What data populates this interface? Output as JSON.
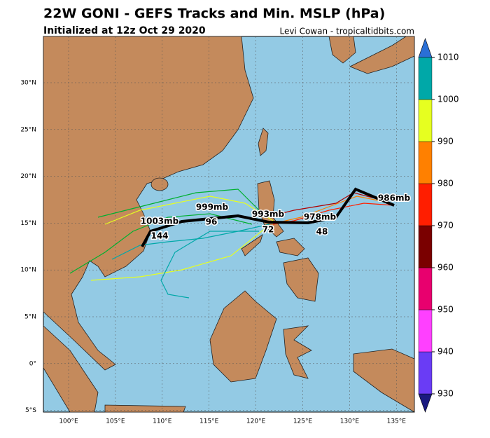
{
  "header": {
    "title": "22W GONI - GEFS Tracks and Min. MSLP (hPa)",
    "subtitle": "Initialized at 12z Oct 29 2020",
    "credit": "Levi Cowan - tropicaltidbits.com"
  },
  "map": {
    "lon_labels": [
      "100°E",
      "105°E",
      "110°E",
      "115°E",
      "120°E",
      "125°E",
      "130°E",
      "135°E"
    ],
    "lat_labels": [
      "30°N",
      "25°N",
      "20°N",
      "15°N",
      "10°N",
      "5°N",
      "0°",
      "5°S"
    ],
    "mean_track_labels": [
      "986mb",
      "978mb",
      "48",
      "993mb",
      "72",
      "999mb",
      "96",
      "1003mb",
      "144"
    ]
  },
  "colorbar": {
    "ticks": [
      930,
      940,
      950,
      960,
      970,
      980,
      990,
      1000,
      1010
    ],
    "colors": [
      "#6a3cf5",
      "#ff40ff",
      "#e8006e",
      "#7a0000",
      "#ff1e00",
      "#ff8000",
      "#e6ff20",
      "#00a8a8"
    ]
  }
}
